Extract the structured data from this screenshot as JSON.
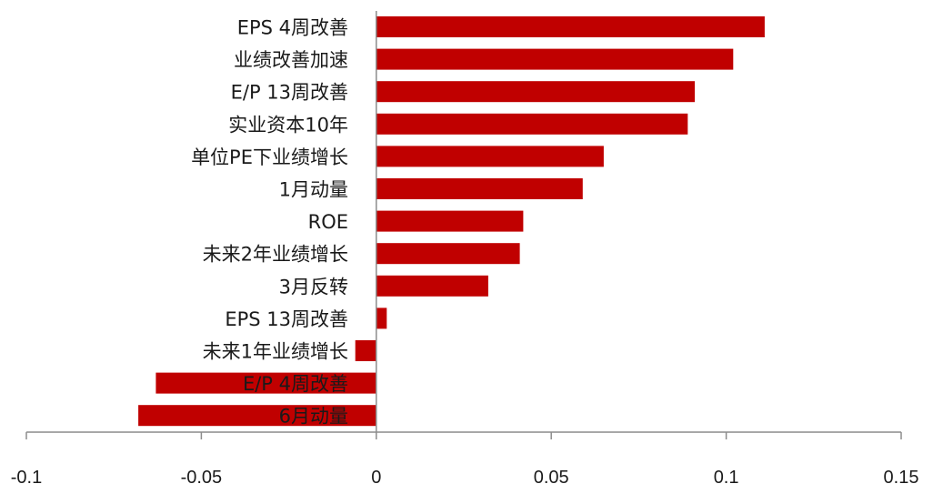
{
  "chart_data": {
    "type": "bar",
    "orientation": "horizontal",
    "categories": [
      "EPS 4周改善",
      "业绩改善加速",
      "E/P 13周改善",
      "实业资本10年",
      "单位PE下业绩增长",
      "1月动量",
      "ROE",
      "未来2年业绩增长",
      "3月反转",
      "EPS 13周改善",
      "未来1年业绩增长",
      "E/P 4周改善",
      "6月动量"
    ],
    "values": [
      0.111,
      0.102,
      0.091,
      0.089,
      0.065,
      0.059,
      0.042,
      0.041,
      0.032,
      0.003,
      -0.006,
      -0.063,
      -0.068
    ],
    "xlim": [
      -0.1,
      0.15
    ],
    "x_ticks": [
      "-0.1",
      "-0.05",
      "0",
      "0.05",
      "0.1",
      "0.15"
    ],
    "x_tick_values": [
      -0.1,
      -0.05,
      0,
      0.05,
      0.1,
      0.15
    ],
    "bar_color": "#C00000",
    "title": "",
    "xlabel": "",
    "ylabel": "",
    "grid": false,
    "legend": "none"
  }
}
